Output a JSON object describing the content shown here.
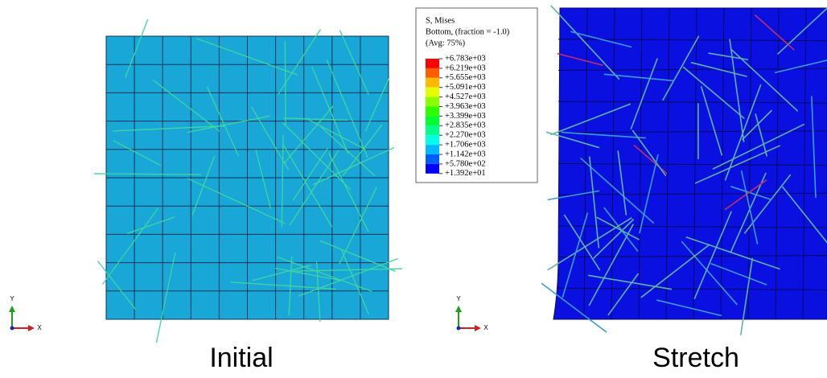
{
  "legend": {
    "title": [
      "S, Mises",
      "Bottom, (fraction = -1.0)",
      "(Avg: 75%)"
    ],
    "labels": [
      "+6.783e+03",
      "+6.219e+03",
      "+5.655e+03",
      "+5.091e+03",
      "+4.527e+03",
      "+3.963e+03",
      "+3.399e+03",
      "+2.835e+03",
      "+2.270e+03",
      "+1.706e+03",
      "+1.142e+03",
      "+5.780e+02",
      "+1.392e+01"
    ],
    "colors": [
      "#ff0000",
      "#ff5d00",
      "#ffb900",
      "#e3ff00",
      "#8bff00",
      "#2eff00",
      "#00ff2e",
      "#00ff8b",
      "#00ffe8",
      "#00b9ff",
      "#005dff",
      "#0000ff"
    ]
  },
  "panels": [
    {
      "caption": "Initial",
      "axis_y": "Y",
      "axis_x": "X"
    },
    {
      "caption": "Stretch",
      "axis_y": "Y",
      "axis_x": "X"
    }
  ]
}
